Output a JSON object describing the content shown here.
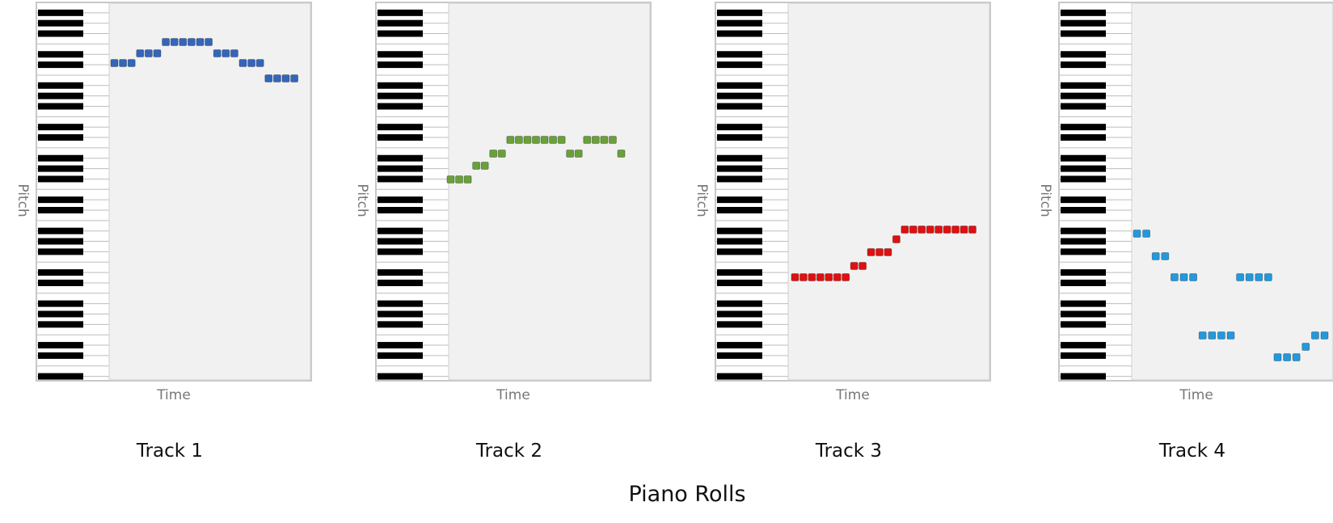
{
  "title": "Piano Rolls",
  "chart_data": [
    {
      "type": "scatter",
      "title": "Track 1",
      "xlabel": "Time",
      "ylabel": "Pitch",
      "color": "#3366bb",
      "notes": [
        [
          1,
          5
        ],
        [
          2,
          5
        ],
        [
          3,
          5
        ],
        [
          4,
          6
        ],
        [
          5,
          6
        ],
        [
          6,
          6
        ],
        [
          7,
          7
        ],
        [
          8,
          7
        ],
        [
          9,
          7
        ],
        [
          10,
          7
        ],
        [
          11,
          7
        ],
        [
          12,
          7
        ],
        [
          13,
          6
        ],
        [
          14,
          6
        ],
        [
          15,
          6
        ],
        [
          16,
          5
        ],
        [
          17,
          5
        ],
        [
          18,
          5
        ],
        [
          19,
          4
        ],
        [
          20,
          4
        ],
        [
          21,
          4
        ],
        [
          22,
          4
        ]
      ]
    },
    {
      "type": "scatter",
      "title": "Track 2",
      "xlabel": "Time",
      "ylabel": "Pitch",
      "color": "#6aa03a",
      "notes": [
        [
          1,
          0
        ],
        [
          2,
          0
        ],
        [
          3,
          0
        ],
        [
          4,
          1
        ],
        [
          5,
          1
        ],
        [
          6,
          2
        ],
        [
          7,
          2
        ],
        [
          8,
          3
        ],
        [
          9,
          3
        ],
        [
          10,
          3
        ],
        [
          11,
          3
        ],
        [
          12,
          3
        ],
        [
          13,
          3
        ],
        [
          14,
          3
        ],
        [
          15,
          2
        ],
        [
          16,
          2
        ],
        [
          17,
          3
        ],
        [
          18,
          3
        ],
        [
          19,
          3
        ],
        [
          20,
          3
        ],
        [
          21,
          2
        ]
      ]
    },
    {
      "type": "scatter",
      "title": "Track 3",
      "xlabel": "Time",
      "ylabel": "Pitch",
      "color": "#e01010",
      "notes": [
        [
          1,
          0
        ],
        [
          2,
          0
        ],
        [
          3,
          0
        ],
        [
          4,
          0
        ],
        [
          5,
          0
        ],
        [
          6,
          0
        ],
        [
          7,
          0
        ],
        [
          8,
          1
        ],
        [
          9,
          1
        ],
        [
          10,
          2
        ],
        [
          11,
          2
        ],
        [
          12,
          2
        ],
        [
          13,
          3
        ],
        [
          14,
          4
        ],
        [
          15,
          4
        ],
        [
          16,
          4
        ],
        [
          17,
          4
        ],
        [
          18,
          4
        ],
        [
          19,
          4
        ],
        [
          20,
          4
        ],
        [
          21,
          4
        ],
        [
          22,
          4
        ]
      ]
    },
    {
      "type": "scatter",
      "title": "Track 4",
      "xlabel": "Time",
      "ylabel": "Pitch",
      "color": "#2299dd",
      "notes": [
        [
          1,
          7
        ],
        [
          2,
          7
        ],
        [
          3,
          6
        ],
        [
          4,
          6
        ],
        [
          5,
          5
        ],
        [
          6,
          5
        ],
        [
          7,
          5
        ],
        [
          8,
          2
        ],
        [
          9,
          2
        ],
        [
          10,
          2
        ],
        [
          11,
          2
        ],
        [
          12,
          5
        ],
        [
          13,
          5
        ],
        [
          14,
          5
        ],
        [
          15,
          5
        ],
        [
          16,
          0
        ],
        [
          17,
          0
        ],
        [
          18,
          0
        ],
        [
          19,
          1
        ],
        [
          20,
          2
        ],
        [
          21,
          2
        ]
      ]
    }
  ]
}
